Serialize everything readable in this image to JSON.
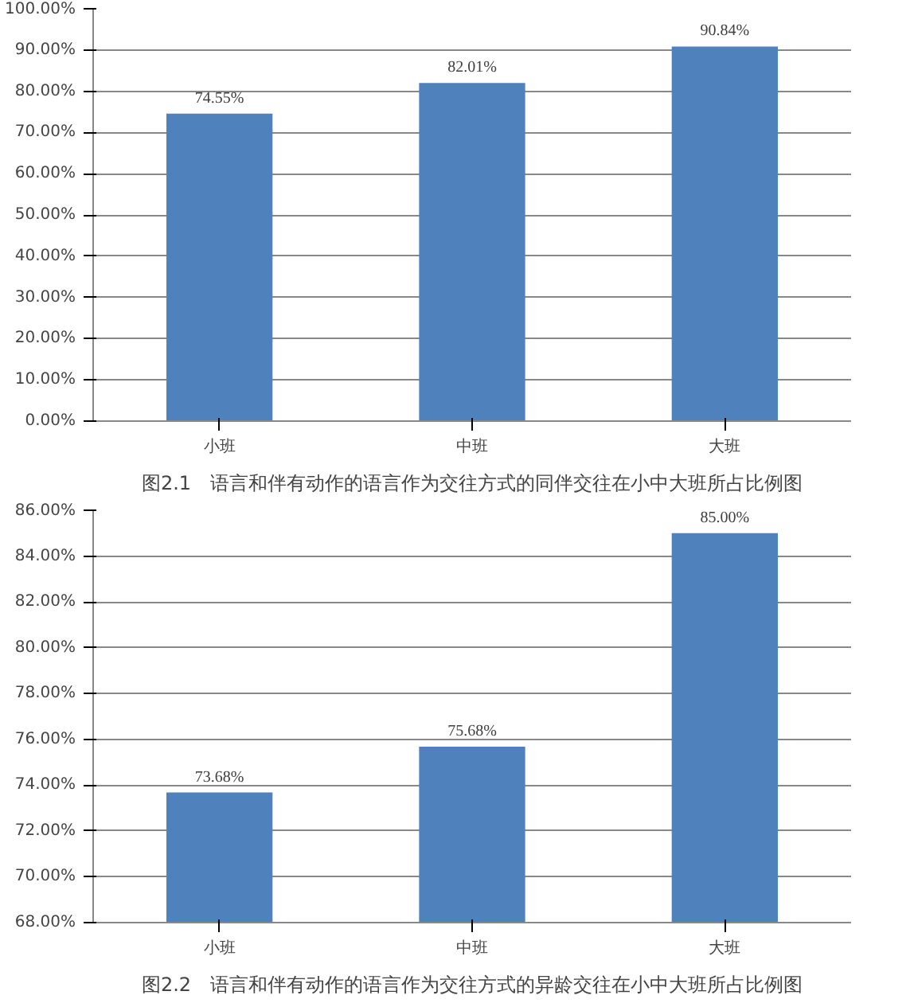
{
  "chart_data": [
    {
      "type": "bar",
      "title": "图2.1　语言和伴有动作的语言作为交往方式的同伴交往在小中大班所占比例图",
      "categories": [
        "小班",
        "中班",
        "大班"
      ],
      "values": [
        74.55,
        82.01,
        90.84
      ],
      "value_labels": [
        "74.55%",
        "82.01%",
        "90.84%"
      ],
      "color": "#4f81bd",
      "ylim": [
        0,
        100
      ],
      "yticks": [
        {
          "value": 0,
          "label": "0.00%"
        },
        {
          "value": 10,
          "label": "10.00%"
        },
        {
          "value": 20,
          "label": "20.00%"
        },
        {
          "value": 30,
          "label": "30.00%"
        },
        {
          "value": 40,
          "label": "40.00%"
        },
        {
          "value": 50,
          "label": "50.00%"
        },
        {
          "value": 60,
          "label": "60.00%"
        },
        {
          "value": 70,
          "label": "70.00%"
        },
        {
          "value": 80,
          "label": "80.00%"
        },
        {
          "value": 90,
          "label": "90.00%"
        },
        {
          "value": 100,
          "label": "100.00%"
        }
      ],
      "grid": "y"
    },
    {
      "type": "bar",
      "title": "图2.2　语言和伴有动作的语言作为交往方式的异龄交往在小中大班所占比例图",
      "categories": [
        "小班",
        "中班",
        "大班"
      ],
      "values": [
        73.68,
        75.68,
        85.0
      ],
      "value_labels": [
        "73.68%",
        "75.68%",
        "85.00%"
      ],
      "color": "#4f81bd",
      "ylim": [
        68,
        86
      ],
      "yticks": [
        {
          "value": 68,
          "label": "68.00%"
        },
        {
          "value": 70,
          "label": "70.00%"
        },
        {
          "value": 72,
          "label": "72.00%"
        },
        {
          "value": 74,
          "label": "74.00%"
        },
        {
          "value": 76,
          "label": "76.00%"
        },
        {
          "value": 78,
          "label": "78.00%"
        },
        {
          "value": 80,
          "label": "80.00%"
        },
        {
          "value": 82,
          "label": "82.00%"
        },
        {
          "value": 84,
          "label": "84.00%"
        },
        {
          "value": 86,
          "label": "86.00%"
        }
      ],
      "grid": "y"
    }
  ]
}
